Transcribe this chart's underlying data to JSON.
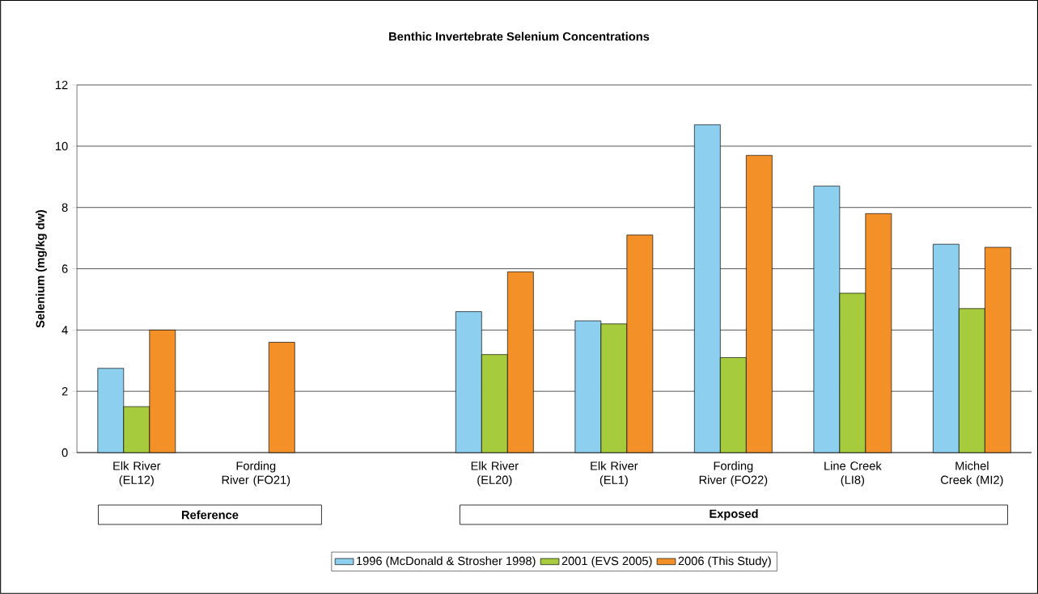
{
  "chart_data": {
    "type": "bar",
    "title": "Benthic Invertebrate Selenium Concentrations",
    "ylabel": "Selenium (mg/kg dw)",
    "categories": [
      "Elk River (EL12)",
      "Fording River (FO21)",
      null,
      "Elk River (EL20)",
      "Elk River (EL1)",
      "Fording River (FO22)",
      "Line Creek (LI8)",
      "Michel Creek (MI2)"
    ],
    "series": [
      {
        "name": "1996 (McDonald & Strosher 1998)",
        "color": "#8ccfef",
        "values": [
          2.75,
          null,
          null,
          4.6,
          4.3,
          10.7,
          8.7,
          6.8
        ]
      },
      {
        "name": "2001 (EVS 2005)",
        "color": "#a6cb3d",
        "values": [
          1.5,
          null,
          null,
          3.2,
          4.2,
          3.1,
          5.2,
          4.7
        ]
      },
      {
        "name": "2006 (This Study)",
        "color": "#f39128",
        "values": [
          4.0,
          3.6,
          null,
          5.9,
          7.1,
          9.7,
          7.8,
          6.7
        ]
      }
    ],
    "ylim": [
      0,
      12
    ],
    "yticks": [
      0,
      2,
      4,
      6,
      8,
      10,
      12
    ],
    "grid": "y",
    "legend": "bottom",
    "annotations": [
      "Reference",
      "Exposed"
    ]
  }
}
